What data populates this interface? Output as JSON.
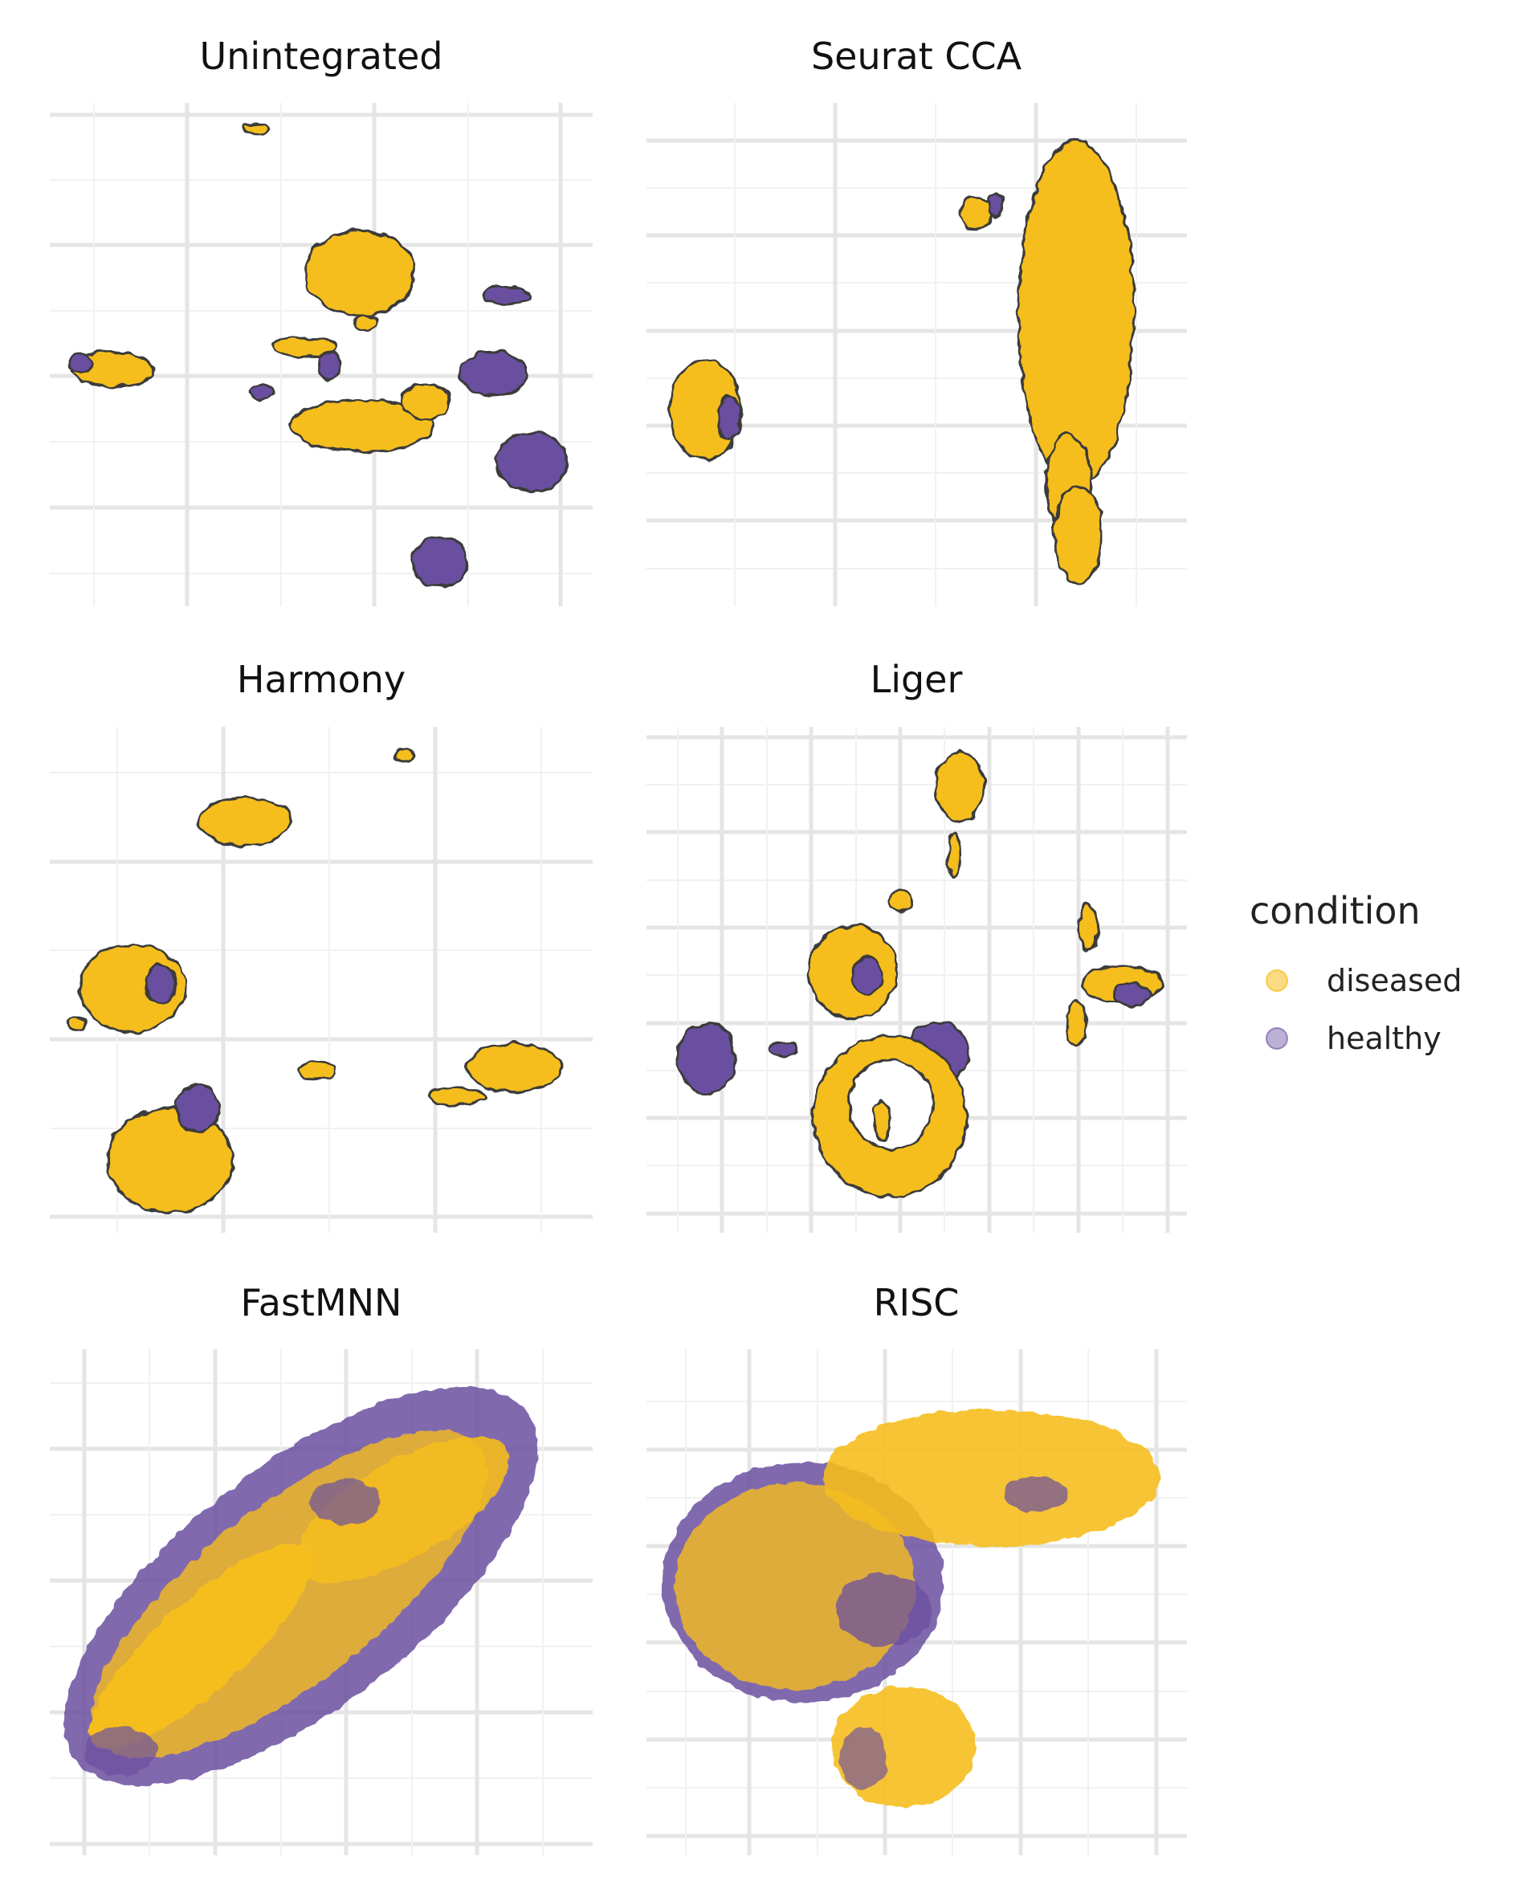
{
  "chart_data": [
    {
      "type": "scatter",
      "title": "Unintegrated",
      "xlabel": "",
      "ylabel": "",
      "grid": true,
      "series": [
        {
          "name": "diseased",
          "color": "#F5BE1E"
        },
        {
          "name": "healthy",
          "color": "#6B4FA0"
        }
      ]
    },
    {
      "type": "scatter",
      "title": "Seurat CCA",
      "xlabel": "",
      "ylabel": "",
      "grid": true,
      "series": [
        {
          "name": "diseased",
          "color": "#F5BE1E"
        },
        {
          "name": "healthy",
          "color": "#6B4FA0"
        }
      ]
    },
    {
      "type": "scatter",
      "title": "Harmony",
      "xlabel": "",
      "ylabel": "",
      "grid": true,
      "series": [
        {
          "name": "diseased",
          "color": "#F5BE1E"
        },
        {
          "name": "healthy",
          "color": "#6B4FA0"
        }
      ]
    },
    {
      "type": "scatter",
      "title": "Liger",
      "xlabel": "",
      "ylabel": "",
      "grid": true,
      "series": [
        {
          "name": "diseased",
          "color": "#F5BE1E"
        },
        {
          "name": "healthy",
          "color": "#6B4FA0"
        }
      ]
    },
    {
      "type": "scatter",
      "title": "FastMNN",
      "xlabel": "",
      "ylabel": "",
      "grid": true,
      "series": [
        {
          "name": "diseased",
          "color": "#F5BE1E"
        },
        {
          "name": "healthy",
          "color": "#6B4FA0"
        }
      ]
    },
    {
      "type": "scatter",
      "title": "RISC",
      "xlabel": "",
      "ylabel": "",
      "grid": true,
      "series": [
        {
          "name": "diseased",
          "color": "#F5BE1E"
        },
        {
          "name": "healthy",
          "color": "#6B4FA0"
        }
      ]
    }
  ],
  "legend": {
    "title": "condition",
    "placement": "right",
    "items": [
      {
        "label": "diseased",
        "color": "#F5BE1E"
      },
      {
        "label": "healthy",
        "color": "#6B4FA0"
      }
    ]
  }
}
